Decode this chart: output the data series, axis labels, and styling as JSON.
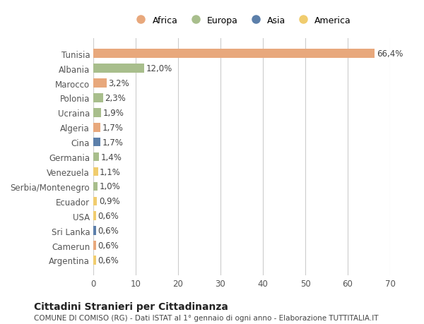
{
  "countries": [
    "Tunisia",
    "Albania",
    "Marocco",
    "Polonia",
    "Ucraina",
    "Algeria",
    "Cina",
    "Germania",
    "Venezuela",
    "Serbia/Montenegro",
    "Ecuador",
    "USA",
    "Sri Lanka",
    "Camerun",
    "Argentina"
  ],
  "values": [
    66.4,
    12.0,
    3.2,
    2.3,
    1.9,
    1.7,
    1.7,
    1.4,
    1.1,
    1.0,
    0.9,
    0.6,
    0.6,
    0.6,
    0.6
  ],
  "labels": [
    "66,4%",
    "12,0%",
    "3,2%",
    "2,3%",
    "1,9%",
    "1,7%",
    "1,7%",
    "1,4%",
    "1,1%",
    "1,0%",
    "0,9%",
    "0,6%",
    "0,6%",
    "0,6%",
    "0,6%"
  ],
  "continents": [
    "Africa",
    "Europa",
    "Africa",
    "Europa",
    "Europa",
    "Africa",
    "Asia",
    "Europa",
    "America",
    "Europa",
    "America",
    "America",
    "Asia",
    "Africa",
    "America"
  ],
  "continent_colors": {
    "Africa": "#E8A87C",
    "Europa": "#A8BE8C",
    "Asia": "#5C7FAA",
    "America": "#F0CC6E"
  },
  "legend_order": [
    "Africa",
    "Europa",
    "Asia",
    "America"
  ],
  "xlim": [
    0,
    70
  ],
  "xticks": [
    0,
    10,
    20,
    30,
    40,
    50,
    60,
    70
  ],
  "title": "Cittadini Stranieri per Cittadinanza",
  "subtitle": "COMUNE DI COMISO (RG) - Dati ISTAT al 1° gennaio di ogni anno - Elaborazione TUTTITALIA.IT",
  "background_color": "#ffffff",
  "grid_color": "#cccccc",
  "bar_height": 0.6,
  "label_fontsize": 8.5,
  "tick_fontsize": 8.5
}
